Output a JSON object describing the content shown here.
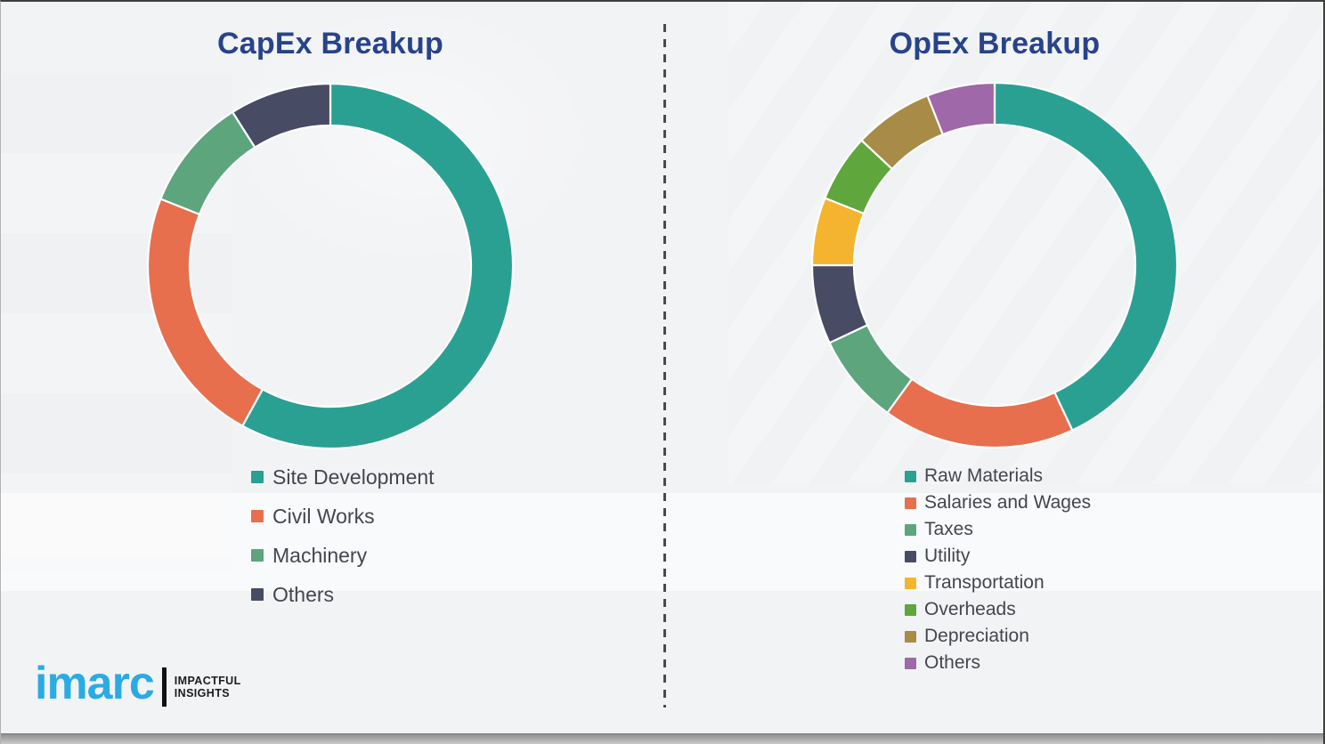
{
  "accent_colors": {
    "title_navy": "#27438a",
    "legend_text": "#44464e",
    "imarc_blue": "#2aabe3",
    "divider_gray": "#4a4a4a"
  },
  "chart_data": [
    {
      "type": "pie",
      "variant": "donut",
      "title": "CapEx Breakup",
      "unit": "%",
      "legend_position": "below-left",
      "categories": [
        "Site Development",
        "Civil Works",
        "Machinery",
        "Others"
      ],
      "values": [
        58,
        23,
        10,
        9
      ],
      "colors": [
        "#2aa093",
        "#e76f4e",
        "#5ca57d",
        "#474b64"
      ],
      "segments": [
        {
          "label": "Site Development",
          "value": 58,
          "color": "#2aa093"
        },
        {
          "label": "Civil Works",
          "value": 23,
          "color": "#e76f4e"
        },
        {
          "label": "Machinery",
          "value": 10,
          "color": "#5ca57d"
        },
        {
          "label": "Others",
          "value": 9,
          "color": "#474b64"
        }
      ]
    },
    {
      "type": "pie",
      "variant": "donut",
      "title": "OpEx Breakup",
      "unit": "%",
      "legend_position": "below-left",
      "categories": [
        "Raw Materials",
        "Salaries and Wages",
        "Taxes",
        "Utility",
        "Transportation",
        "Overheads",
        "Depreciation",
        "Others"
      ],
      "values": [
        43,
        17,
        8,
        7,
        6,
        6,
        7,
        6
      ],
      "colors": [
        "#2aa093",
        "#e76f4e",
        "#5ca57d",
        "#474b64",
        "#f5b42f",
        "#5fa63c",
        "#a88b46",
        "#9f68a8"
      ],
      "segments": [
        {
          "label": "Raw Materials",
          "value": 43,
          "color": "#2aa093"
        },
        {
          "label": "Salaries and Wages",
          "value": 17,
          "color": "#e76f4e"
        },
        {
          "label": "Taxes",
          "value": 8,
          "color": "#5ca57d"
        },
        {
          "label": "Utility",
          "value": 7,
          "color": "#474b64"
        },
        {
          "label": "Transportation",
          "value": 6,
          "color": "#f5b42f"
        },
        {
          "label": "Overheads",
          "value": 6,
          "color": "#5fa63c"
        },
        {
          "label": "Depreciation",
          "value": 7,
          "color": "#a88b46"
        },
        {
          "label": "Others",
          "value": 6,
          "color": "#9f68a8"
        }
      ]
    }
  ],
  "logo": {
    "wordmark": "imarc",
    "tagline_line1": "IMPACTFUL",
    "tagline_line2": "INSIGHTS"
  }
}
